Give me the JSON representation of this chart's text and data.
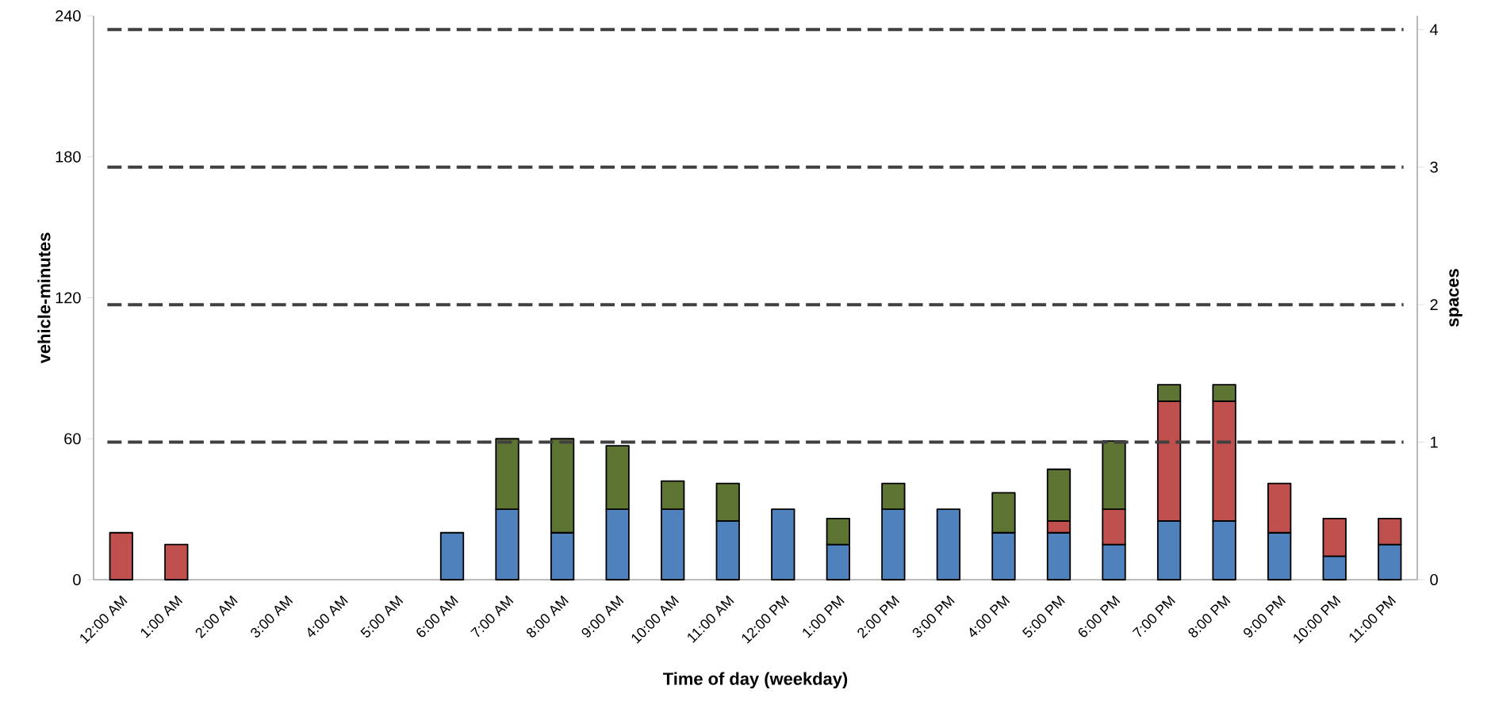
{
  "chart_data": {
    "type": "bar",
    "stacked": true,
    "xlabel": "Time of day (weekday)",
    "ylabel": "vehicle-minutes",
    "y2label": "spaces",
    "categories": [
      "12:00 AM",
      "1:00 AM",
      "2:00 AM",
      "3:00 AM",
      "4:00 AM",
      "5:00 AM",
      "6:00 AM",
      "7:00 AM",
      "8:00 AM",
      "9:00 AM",
      "10:00 AM",
      "11:00 AM",
      "12:00 PM",
      "1:00 PM",
      "2:00 PM",
      "3:00 PM",
      "4:00 PM",
      "5:00 PM",
      "6:00 PM",
      "7:00 PM",
      "8:00 PM",
      "9:00 PM",
      "10:00 PM",
      "11:00 PM"
    ],
    "series": [
      {
        "color": "#4f81bd",
        "values": [
          null,
          null,
          null,
          null,
          null,
          null,
          20,
          30,
          20,
          30,
          30,
          25,
          30,
          15,
          30,
          30,
          20,
          20,
          15,
          25,
          25,
          20,
          10,
          15
        ]
      },
      {
        "color": "#c0504d",
        "values": [
          20,
          15,
          null,
          null,
          null,
          null,
          null,
          null,
          null,
          null,
          null,
          null,
          null,
          null,
          null,
          null,
          null,
          5,
          15,
          51,
          51,
          21,
          16,
          11
        ]
      },
      {
        "color": "#5e7432",
        "values": [
          null,
          null,
          null,
          null,
          null,
          null,
          null,
          30,
          40,
          27,
          12,
          16,
          null,
          11,
          11,
          null,
          17,
          22,
          29,
          7,
          7,
          null,
          null,
          null
        ]
      }
    ],
    "ylim": [
      0,
      240
    ],
    "yticks": [
      0,
      60,
      120,
      180,
      240
    ],
    "y2lim": [
      0,
      4.1
    ],
    "y2ticks": [
      0,
      1,
      2,
      3,
      4
    ],
    "ref_lines": [
      {
        "axis": "y2",
        "value": 1,
        "color": "#404040",
        "line_style": "dashed"
      },
      {
        "axis": "y2",
        "value": 2,
        "color": "#404040",
        "line_style": "dashed"
      },
      {
        "axis": "y2",
        "value": 3,
        "color": "#404040",
        "line_style": "dashed"
      },
      {
        "axis": "y2",
        "value": 4,
        "color": "#404040",
        "line_style": "dashed"
      }
    ],
    "grid": false
  }
}
